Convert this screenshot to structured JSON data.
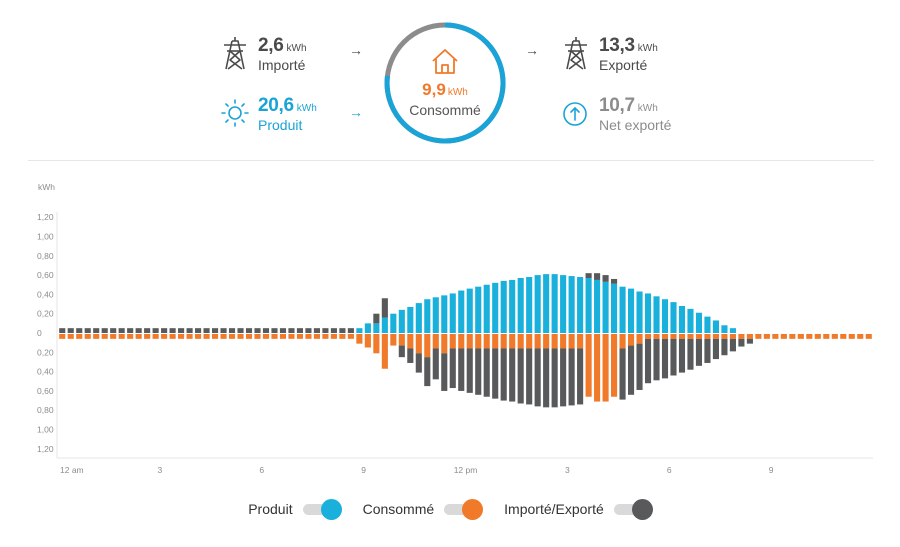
{
  "summary": {
    "imported": {
      "value": "2,6",
      "unit": "kWh",
      "label": "Importé"
    },
    "produced": {
      "value": "20,6",
      "unit": "kWh",
      "label": "Produit"
    },
    "consumed": {
      "value": "9,9",
      "unit": "kWh",
      "label": "Consommé"
    },
    "exported": {
      "value": "13,3",
      "unit": "kWh",
      "label": "Exporté"
    },
    "net_exported": {
      "value": "10,7",
      "unit": "kWh",
      "label": "Net exporté"
    },
    "arrow_glyph": "→"
  },
  "colors": {
    "produced": "#1ab0dc",
    "consumed": "#f07a2a",
    "grid": "#58595b",
    "ring_track": "#8c8c8c",
    "ring_fill": "#1aa3d6"
  },
  "icons": {
    "imported": "power-tower-icon",
    "produced": "sun-icon",
    "consumed": "house-icon",
    "exported": "power-tower-icon",
    "net_exported": "up-arrow-circle-icon"
  },
  "legend": [
    {
      "label": "Produit",
      "color": "#1ab0dc"
    },
    {
      "label": "Consommé",
      "color": "#f07a2a"
    },
    {
      "label": "Importé/Exporté",
      "color": "#58595b"
    }
  ],
  "chart_data": {
    "type": "bar",
    "ylabel": "kWh",
    "yticks": [
      "1,20",
      "1,00",
      "0,80",
      "0,60",
      "0,40",
      "0,20",
      "0",
      "0,20",
      "0,40",
      "0,60",
      "0,80",
      "1,00",
      "1,20"
    ],
    "ylim": [
      -1.2,
      1.2
    ],
    "xtick_labels": [
      "12 am",
      "3",
      "6",
      "9",
      "12 pm",
      "3",
      "6",
      "9"
    ],
    "xtick_hours": [
      0,
      3,
      6,
      9,
      12,
      15,
      18,
      21
    ],
    "x_unit": "15-minute interval of day (0–95)",
    "grid": false,
    "series": [
      {
        "name": "Produit",
        "values": [
          0,
          0,
          0,
          0,
          0,
          0,
          0,
          0,
          0,
          0,
          0,
          0,
          0,
          0,
          0,
          0,
          0,
          0,
          0,
          0,
          0,
          0,
          0,
          0,
          0,
          0,
          0,
          0,
          0,
          0,
          0,
          0,
          0,
          0,
          0,
          0.05,
          0.1,
          0.1,
          0.16,
          0.2,
          0.24,
          0.27,
          0.31,
          0.35,
          0.37,
          0.39,
          0.41,
          0.44,
          0.46,
          0.48,
          0.5,
          0.52,
          0.54,
          0.55,
          0.57,
          0.58,
          0.6,
          0.61,
          0.61,
          0.6,
          0.59,
          0.58,
          0.57,
          0.55,
          0.53,
          0.51,
          0.48,
          0.46,
          0.43,
          0.41,
          0.38,
          0.35,
          0.32,
          0.28,
          0.25,
          0.21,
          0.17,
          0.13,
          0.08,
          0.05,
          0,
          0,
          0,
          0,
          0,
          0,
          0,
          0,
          0,
          0,
          0,
          0,
          0,
          0,
          0,
          0
        ]
      },
      {
        "name": "Consommé",
        "values": [
          0.05,
          0.05,
          0.05,
          0.05,
          0.05,
          0.05,
          0.05,
          0.05,
          0.05,
          0.05,
          0.05,
          0.05,
          0.05,
          0.05,
          0.05,
          0.05,
          0.05,
          0.05,
          0.05,
          0.05,
          0.05,
          0.05,
          0.05,
          0.05,
          0.05,
          0.05,
          0.05,
          0.05,
          0.05,
          0.05,
          0.05,
          0.05,
          0.05,
          0.05,
          0.05,
          0.1,
          0.14,
          0.2,
          0.36,
          0.12,
          0.12,
          0.15,
          0.2,
          0.24,
          0.15,
          0.2,
          0.15,
          0.15,
          0.15,
          0.15,
          0.15,
          0.15,
          0.15,
          0.15,
          0.15,
          0.15,
          0.15,
          0.15,
          0.15,
          0.15,
          0.15,
          0.15,
          0.65,
          0.7,
          0.7,
          0.65,
          0.15,
          0.12,
          0.1,
          0.05,
          0.05,
          0.05,
          0.05,
          0.05,
          0.05,
          0.05,
          0.05,
          0.05,
          0.05,
          0.05,
          0.05,
          0.05,
          0.05,
          0.05,
          0.05,
          0.05,
          0.05,
          0.05,
          0.05,
          0.05,
          0.05,
          0.05,
          0.05,
          0.05,
          0.05,
          0.05
        ]
      },
      {
        "name": "Importé/Exporté",
        "values": [
          0.05,
          0.05,
          0.05,
          0.05,
          0.05,
          0.05,
          0.05,
          0.05,
          0.05,
          0.05,
          0.05,
          0.05,
          0.05,
          0.05,
          0.05,
          0.05,
          0.05,
          0.05,
          0.05,
          0.05,
          0.05,
          0.05,
          0.05,
          0.05,
          0.05,
          0.05,
          0.05,
          0.05,
          0.05,
          0.05,
          0.05,
          0.05,
          0.05,
          0.05,
          0.05,
          0,
          0,
          0.1,
          0.2,
          0,
          -0.12,
          -0.15,
          -0.2,
          -0.3,
          -0.32,
          -0.39,
          -0.41,
          -0.44,
          -0.46,
          -0.48,
          -0.5,
          -0.52,
          -0.54,
          -0.55,
          -0.57,
          -0.58,
          -0.6,
          -0.61,
          -0.61,
          -0.6,
          -0.59,
          -0.58,
          0.05,
          0.07,
          0.07,
          0.05,
          -0.53,
          -0.51,
          -0.48,
          -0.46,
          -0.43,
          -0.41,
          -0.38,
          -0.35,
          -0.32,
          -0.28,
          -0.25,
          -0.21,
          -0.17,
          -0.13,
          -0.08,
          -0.05,
          0,
          0,
          0,
          0,
          0,
          0,
          0,
          0,
          0,
          0,
          0,
          0,
          0,
          0
        ]
      }
    ]
  }
}
